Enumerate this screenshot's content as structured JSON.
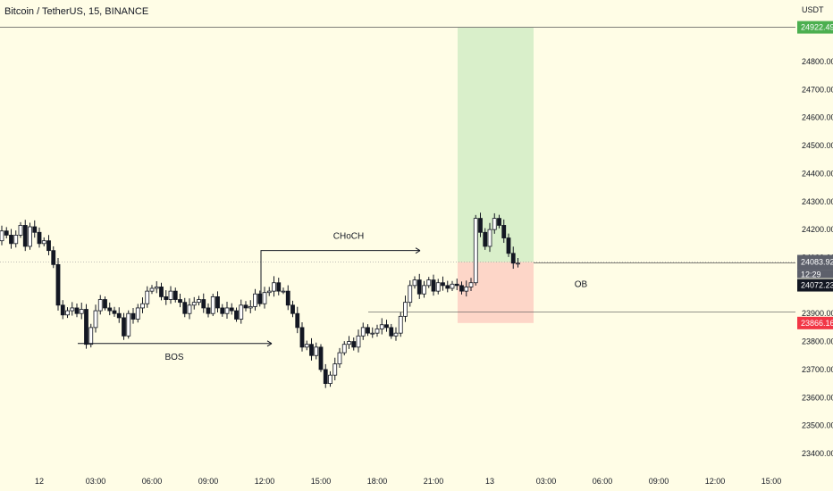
{
  "header": {
    "title": "Bitcoin / TetherUS, 15, BINANCE",
    "currency": "USDT"
  },
  "colors": {
    "background": "#fffde6",
    "candle_body": "#131722",
    "candle_up_fill": "#ffffff",
    "target_zone": "#d9efca",
    "stop_zone": "#fdd6c8",
    "target_badge": "#4caf50",
    "stop_badge": "#f23645",
    "price_badge": "#5d606b",
    "cursor_badge": "#131722"
  },
  "chart_data": {
    "type": "candlestick",
    "title": "Bitcoin / TetherUS, 15, BINANCE",
    "y_axis": {
      "range": [
        23350,
        24980
      ],
      "ticks": [
        "24800.00",
        "24700.00",
        "24600.00",
        "24500.00",
        "24400.00",
        "24300.00",
        "24200.00",
        "24100.00",
        "24000.00",
        "23900.00",
        "23800.00",
        "23700.00",
        "23600.00",
        "23500.00",
        "23400.00"
      ],
      "tick_values": [
        24800,
        24700,
        24600,
        24500,
        24400,
        24300,
        24200,
        24100,
        24000,
        23900,
        23800,
        23700,
        23600,
        23500,
        23400
      ]
    },
    "x_axis": {
      "ticks": [
        "12",
        "03:00",
        "06:00",
        "09:00",
        "12:00",
        "15:00",
        "18:00",
        "21:00",
        "13",
        "03:00",
        "06:00",
        "09:00",
        "12:00",
        "15:00"
      ],
      "tick_times": [
        "2023-02-12 00:00",
        "2023-02-12 03:00",
        "2023-02-12 06:00",
        "2023-02-12 09:00",
        "2023-02-12 12:00",
        "2023-02-12 15:00",
        "2023-02-12 18:00",
        "2023-02-12 21:00",
        "2023-02-13 00:00",
        "2023-02-13 03:00",
        "2023-02-13 06:00",
        "2023-02-13 09:00",
        "2023-02-13 12:00",
        "2023-02-13 15:00"
      ]
    },
    "series": [
      {
        "start_time": "2023-02-11 21:45",
        "interval": "15m",
        "close_values": [
          24160,
          24195,
          24180,
          24150,
          24180,
          24215,
          24140,
          24210,
          24190,
          24150,
          24160,
          24125,
          24075,
          23930,
          23895,
          23910,
          23920,
          23900,
          23915,
          23790,
          23850,
          23910,
          23950,
          23920,
          23910,
          23900,
          23885,
          23820,
          23900,
          23880,
          23920,
          23935,
          23980,
          23990,
          23995,
          23960,
          23950,
          23980,
          23950,
          23940,
          23900,
          23930,
          23940,
          23950,
          23920,
          23900,
          23960,
          23920,
          23900,
          23920,
          23910,
          23880,
          23930,
          23920,
          23925,
          23970,
          23935,
          23975,
          23980,
          24010,
          23980,
          23980,
          23930,
          23900,
          23850,
          23780,
          23790,
          23750,
          23780,
          23700,
          23650,
          23680,
          23720,
          23760,
          23790,
          23800,
          23780,
          23820,
          23850,
          23830,
          23830,
          23845,
          23860,
          23850,
          23820,
          23830,
          23890,
          23940,
          24000,
          24020,
          23970,
          24000,
          24020,
          23980,
          24010,
          24000,
          23990,
          24005,
          24000,
          23980,
          23995,
          24010,
          24240,
          24190,
          24140,
          24200,
          24240,
          24215,
          24170,
          24115,
          24080,
          24080
        ]
      }
    ],
    "current_price": 24083.92,
    "countdown": "12:29",
    "price_label": "24072.23",
    "position": {
      "entry": 24083.92,
      "target": 24922.49,
      "stop": 23866.16
    },
    "annotations": [
      {
        "text": "BOS",
        "level": 23793
      },
      {
        "text": "CHoCH",
        "level": 24160
      },
      {
        "text": "OB",
        "level": 24005
      }
    ],
    "axis_badges": {
      "target": "24922.49",
      "current": "24083.92",
      "stop": "23866.16"
    }
  }
}
